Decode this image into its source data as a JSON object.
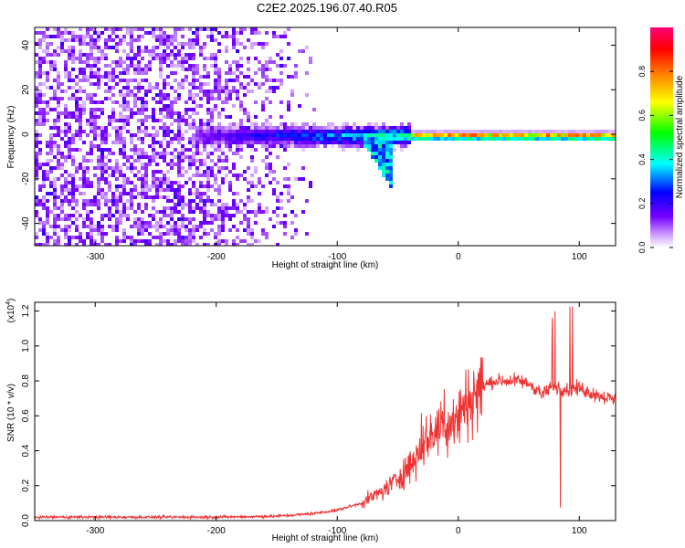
{
  "figure_title": "C2E2.2025.196.07.40.R05",
  "chart_data": [
    {
      "type": "heatmap",
      "xlabel": "Height of straight line (km)",
      "ylabel": "Frequency (Hz)",
      "xlim": [
        -350,
        130
      ],
      "ylim": [
        -50,
        48
      ],
      "x_ticks": [
        -300,
        -200,
        -100,
        0,
        100
      ],
      "y_ticks": [
        -40,
        -20,
        0,
        20,
        40
      ],
      "colorbar": {
        "label": "Normalized spectral amplitude",
        "range": [
          0,
          1
        ],
        "ticks": [
          "0.0",
          "0.2",
          "0.4",
          "0.6",
          "0.8"
        ],
        "colors": [
          "#ffffff",
          "#7700ff",
          "#0000ff",
          "#00ffff",
          "#00ff00",
          "#ffff00",
          "#ff8800",
          "#ff0000",
          "#ff0077"
        ]
      },
      "features": {
        "noise_region_x": [
          -350,
          -120
        ],
        "noise_level": 0.12,
        "signal_band_center_hz": 0,
        "signal_onset_x": -220,
        "signal_strong_x": -40,
        "dispersion_tail": {
          "x": [
            -80,
            -55
          ],
          "freq_hz": [
            0,
            -22
          ]
        }
      }
    },
    {
      "type": "line",
      "xlabel": "Height of straight line (km)",
      "ylabel": "SNR (10 * v/v)",
      "y_scale_label": "(x10",
      "y_scale_exponent": "4",
      "xlim": [
        -350,
        130
      ],
      "ylim": [
        0,
        1.25
      ],
      "x_ticks": [
        -300,
        -200,
        -100,
        0,
        100
      ],
      "y_ticks": [
        "0.0",
        "0.2",
        "0.4",
        "0.6",
        "0.8",
        "1.0",
        "1.2"
      ],
      "series": [
        {
          "color": "#ee3333",
          "x": [
            -350,
            -300,
            -250,
            -200,
            -150,
            -120,
            -100,
            -80,
            -60,
            -50,
            -40,
            -30,
            -20,
            -10,
            0,
            10,
            20,
            30,
            40,
            50,
            60,
            65,
            70,
            75,
            80,
            90,
            100,
            110,
            120,
            130
          ],
          "y": [
            0.02,
            0.02,
            0.02,
            0.02,
            0.025,
            0.04,
            0.06,
            0.1,
            0.18,
            0.24,
            0.32,
            0.42,
            0.52,
            0.55,
            0.6,
            0.7,
            0.77,
            0.8,
            0.8,
            0.8,
            0.78,
            0.75,
            0.72,
            0.75,
            0.76,
            0.75,
            0.76,
            0.73,
            0.71,
            0.69
          ]
        }
      ]
    }
  ]
}
